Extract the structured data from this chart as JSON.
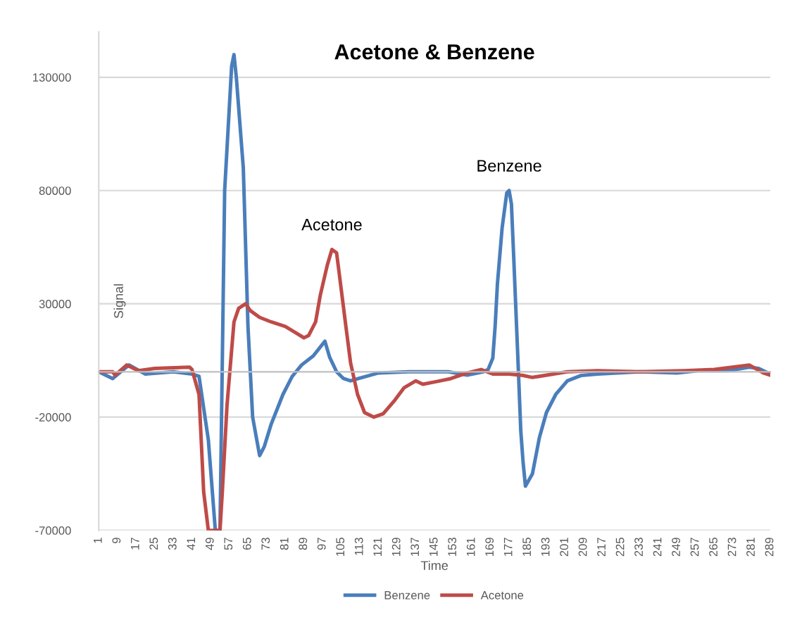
{
  "chart_data": {
    "type": "line",
    "title": "Acetone & Benzene",
    "xlabel": "Time",
    "ylabel": "Signal",
    "xlim": [
      1,
      289
    ],
    "xticks": [
      1,
      9,
      17,
      25,
      33,
      41,
      49,
      57,
      65,
      73,
      81,
      89,
      97,
      105,
      113,
      121,
      129,
      137,
      145,
      153,
      161,
      169,
      177,
      185,
      193,
      201,
      209,
      217,
      225,
      233,
      241,
      249,
      257,
      265,
      273,
      281,
      289
    ],
    "ylim": [
      -70000,
      150000
    ],
    "yticks": [
      -70000,
      -20000,
      30000,
      80000,
      130000
    ],
    "grid": "y",
    "legend": "bottom",
    "marker": "none",
    "line_style": "solid",
    "annotations": [
      {
        "text": "Acetone",
        "x": 101,
        "y": 54000
      },
      {
        "text": "Benzene",
        "x": 177,
        "y": 80000
      }
    ],
    "series": [
      {
        "name": "Benzene",
        "color": "#4a7ebb",
        "x": [
          1,
          7,
          14,
          21,
          33,
          41,
          44,
          48,
          51,
          53,
          55,
          58,
          59,
          60,
          63,
          65,
          67,
          70,
          72,
          75,
          80,
          84,
          88,
          93,
          98,
          100,
          103,
          106,
          109,
          114,
          121,
          134,
          151,
          159,
          166,
          168,
          170,
          171,
          172,
          174,
          176,
          177,
          178,
          179,
          181,
          182,
          183,
          184,
          187,
          190,
          193,
          197,
          202,
          208,
          215,
          233,
          249,
          258,
          271,
          280,
          284,
          289
        ],
        "values": [
          0,
          -3000,
          3000,
          -1000,
          0,
          -1000,
          -2000,
          -30000,
          -70000,
          -70000,
          80000,
          135000,
          140000,
          130000,
          90000,
          20000,
          -20000,
          -37000,
          -33000,
          -23000,
          -10000,
          -2000,
          3000,
          7000,
          13500,
          6500,
          0,
          -3000,
          -4000,
          -2500,
          -500,
          0,
          0,
          -1500,
          0,
          1000,
          6000,
          20000,
          39000,
          63500,
          79000,
          80000,
          74000,
          50000,
          0,
          -26000,
          -40000,
          -50500,
          -45000,
          -29000,
          -18000,
          -10000,
          -4000,
          -1600,
          -1000,
          0,
          -500,
          500,
          500,
          2000,
          1500,
          -1000
        ]
      },
      {
        "name": "Acetone",
        "color": "#be4b48",
        "x": [
          1,
          7,
          8,
          13,
          18,
          25,
          40,
          41,
          44,
          46,
          48,
          53,
          54,
          56,
          59,
          61,
          64,
          66,
          70,
          75,
          81,
          85,
          89,
          91,
          94,
          96,
          99,
          101,
          103,
          104,
          107,
          109,
          112,
          115,
          119,
          123,
          128,
          132,
          137,
          140,
          146,
          152,
          159,
          165,
          170,
          177,
          183,
          187,
          196,
          202,
          215,
          233,
          252,
          265,
          280,
          286,
          289
        ],
        "values": [
          0,
          0,
          -1500,
          3000,
          500,
          1500,
          2000,
          1000,
          -10000,
          -53000,
          -70000,
          -70000,
          -53000,
          -15000,
          22000,
          28000,
          30000,
          27000,
          24000,
          22000,
          20000,
          17500,
          15000,
          16000,
          22000,
          33700,
          47000,
          54000,
          52500,
          44500,
          20000,
          4000,
          -10000,
          -18000,
          -20000,
          -18500,
          -12500,
          -7000,
          -4000,
          -5500,
          -4300,
          -3000,
          -500,
          1000,
          -1000,
          -1000,
          -1600,
          -2500,
          -1000,
          0,
          500,
          0,
          500,
          1000,
          3000,
          -500,
          -1500
        ]
      }
    ]
  }
}
